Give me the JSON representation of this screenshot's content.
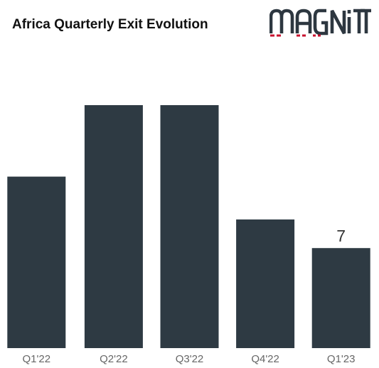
{
  "title": "Africa Quarterly Exit Evolution",
  "logo": {
    "text": "MAGNiTT",
    "main_color": "#2d3740",
    "accent_color": "#c8102e"
  },
  "chart_data": {
    "type": "bar",
    "title": "Africa Quarterly Exit Evolution",
    "xlabel": "",
    "ylabel": "",
    "categories": [
      "Q1'22",
      "Q2'22",
      "Q3'22",
      "Q4'22",
      "Q1'23"
    ],
    "values": [
      12,
      17,
      17,
      9,
      7
    ],
    "value_labels": [
      "",
      "",
      "",
      "",
      "7"
    ],
    "ylim": [
      0,
      17
    ],
    "grid": false,
    "legend": "none",
    "bar_color": "#2e3a43",
    "tick_label_color": "#666666",
    "value_label_color": "#333333"
  }
}
